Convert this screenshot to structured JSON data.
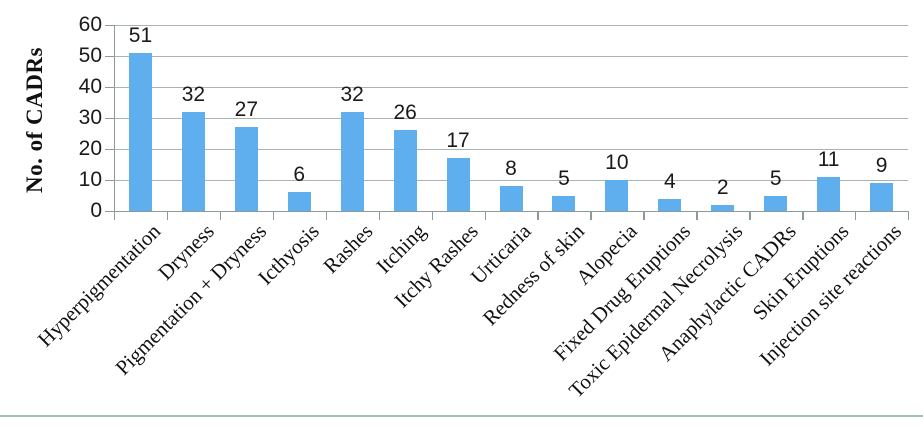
{
  "figure": {
    "bottom_rule_color": "#A9BCBC",
    "background_color": "#FFFFFF"
  },
  "chart_data": {
    "type": "bar",
    "title": "",
    "xlabel": "",
    "ylabel": "No. of CADRs",
    "categories": [
      "Hyperpigmentation",
      "Dryness",
      "Pigmentation + Dryness",
      "Icthyosis",
      "Rashes",
      "Itching",
      "Itchy Rashes",
      "Urticaria",
      "Redness of skin",
      "Alopecia",
      "Fixed Drug Eruptions",
      "Toxic Epidermal Necrolysis",
      "Anaphylactic CADRs",
      "Skin Eruptions",
      "Injection site reactions"
    ],
    "values": [
      51,
      32,
      27,
      6,
      32,
      26,
      17,
      8,
      5,
      10,
      4,
      2,
      5,
      11,
      9
    ],
    "ylim": [
      0,
      60
    ],
    "yticks": [
      0,
      10,
      20,
      30,
      40,
      50,
      60
    ],
    "grid": "horizontal",
    "legend": "none",
    "data_labels": true,
    "bar_color": "#5FAFEF",
    "gridline_color": "#A7B4B4",
    "axis_color": "#8C9A9A",
    "text_color": "#1a1a1a"
  }
}
